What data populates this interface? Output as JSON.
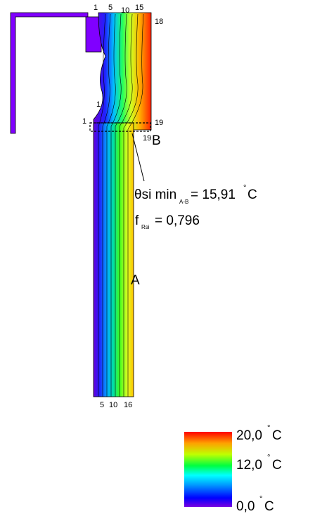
{
  "isotherm_labels": {
    "top": [
      "1",
      "5",
      "10",
      "15",
      "18"
    ],
    "left": [
      "1",
      "1"
    ],
    "right_top": "19",
    "right_bottom": "19",
    "bottom": [
      "5",
      "10",
      "16"
    ]
  },
  "points": {
    "a": "A",
    "b": "B"
  },
  "annotation": {
    "theta_symbol": "θ",
    "theta_text": "si min",
    "theta_subscript": "A-B",
    "theta_value": "= 15,91",
    "theta_degree": "°",
    "theta_unit": "C",
    "f_symbol": "f",
    "f_subscript": "Rsi",
    "f_value": "= 0,796"
  },
  "legend": [
    {
      "value": "20,0",
      "degree": "°",
      "unit": "C"
    },
    {
      "value": "12,0",
      "degree": "°",
      "unit": "C"
    },
    {
      "value": "0,0",
      "degree": "°",
      "unit": "C"
    }
  ]
}
